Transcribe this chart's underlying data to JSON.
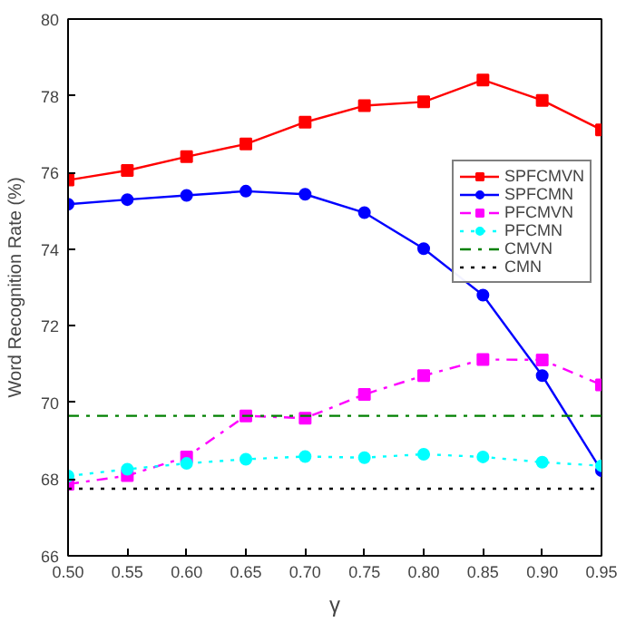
{
  "chart_data": {
    "type": "line",
    "xlabel": "γ",
    "ylabel": "Word Recognition Rate (%)",
    "x": [
      0.5,
      0.55,
      0.6,
      0.65,
      0.7,
      0.75,
      0.8,
      0.85,
      0.9,
      0.95
    ],
    "xlim": [
      0.5,
      0.95
    ],
    "ylim": [
      66,
      80
    ],
    "xticks": [
      {
        "value": 0.5,
        "label": "0.50"
      },
      {
        "value": 0.55,
        "label": "0.55"
      },
      {
        "value": 0.6,
        "label": "0.60"
      },
      {
        "value": 0.65,
        "label": "0.65"
      },
      {
        "value": 0.7,
        "label": "0.70"
      },
      {
        "value": 0.75,
        "label": "0.75"
      },
      {
        "value": 0.8,
        "label": "0.80"
      },
      {
        "value": 0.85,
        "label": "0.85"
      },
      {
        "value": 0.9,
        "label": "0.90"
      },
      {
        "value": 0.95,
        "label": "0.95"
      }
    ],
    "yticks": [
      66,
      68,
      70,
      72,
      74,
      76,
      78,
      80
    ],
    "grid": false,
    "legend": "top right",
    "series": [
      {
        "name": "SPFCMVN",
        "color": "#ff0000",
        "marker": "square",
        "line_style": "solid",
        "values": [
          75.8,
          76.05,
          76.41,
          76.74,
          77.31,
          77.74,
          77.84,
          78.41,
          77.88,
          77.11
        ]
      },
      {
        "name": "SPFCMN",
        "color": "#0000ff",
        "marker": "circle",
        "line_style": "solid",
        "values": [
          75.17,
          75.29,
          75.4,
          75.51,
          75.43,
          74.95,
          74.01,
          72.8,
          70.7,
          68.22
        ]
      },
      {
        "name": "PFCMVN",
        "color": "#ff00ff",
        "marker": "square",
        "line_style": "dashdot",
        "values": [
          67.87,
          68.09,
          68.58,
          69.65,
          69.59,
          70.21,
          70.7,
          71.12,
          71.11,
          70.46
        ]
      },
      {
        "name": "PFCMN",
        "color": "#00ffff",
        "marker": "circle",
        "line_style": "dotted",
        "values": [
          68.08,
          68.26,
          68.41,
          68.52,
          68.59,
          68.56,
          68.65,
          68.58,
          68.44,
          68.35
        ]
      },
      {
        "name": "CMVN",
        "color": "#008000",
        "marker": "none",
        "line_style": "dashdot",
        "values": [
          69.65,
          69.65,
          69.65,
          69.65,
          69.65,
          69.65,
          69.65,
          69.65,
          69.65,
          69.65
        ]
      },
      {
        "name": "CMN",
        "color": "#000000",
        "marker": "none",
        "line_style": "dotted",
        "values": [
          67.75,
          67.75,
          67.75,
          67.75,
          67.75,
          67.75,
          67.75,
          67.75,
          67.75,
          67.75
        ]
      }
    ]
  }
}
